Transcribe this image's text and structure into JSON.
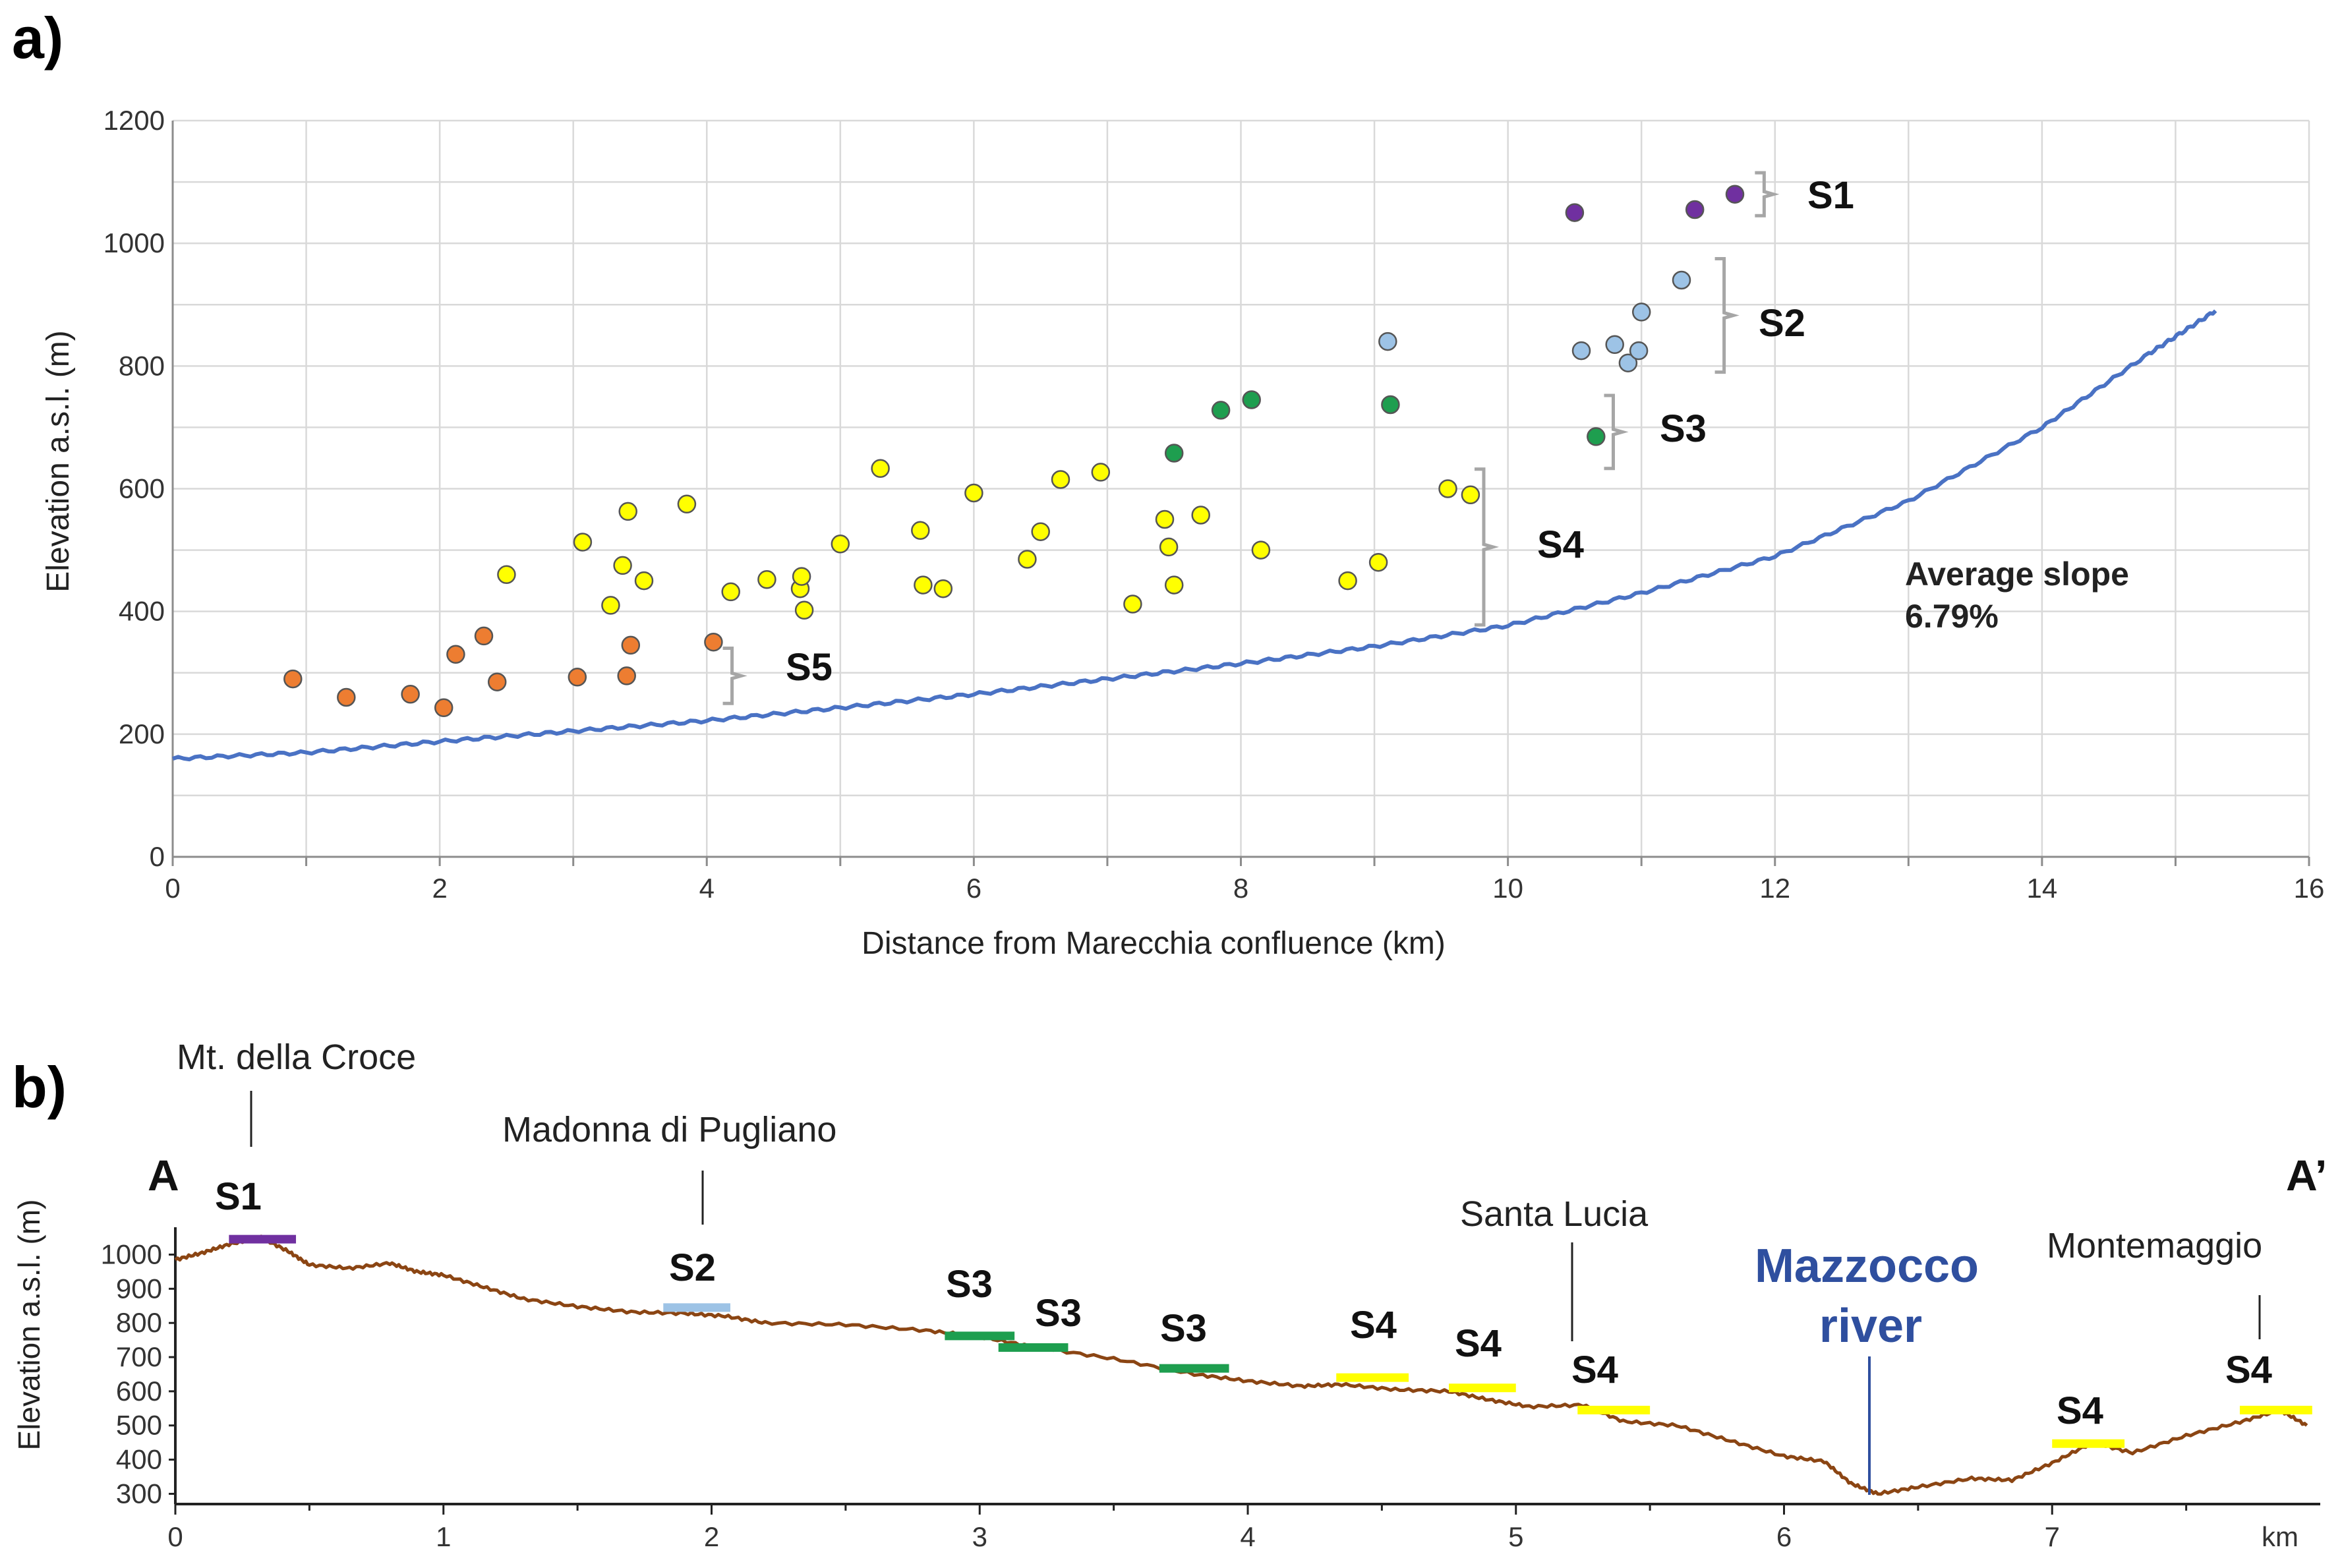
{
  "figure": {
    "panel_a_label": "a)",
    "panel_b_label": "b)"
  },
  "chart_data": [
    {
      "type": "scatter",
      "panel": "a)",
      "xlabel": "Distance from Marecchia confluence (km)",
      "ylabel": "Elevation a.s.l. (m)",
      "xlim": [
        0,
        16
      ],
      "ylim": [
        0,
        1200
      ],
      "xticks": [
        0,
        2,
        4,
        6,
        8,
        10,
        12,
        14,
        16
      ],
      "yticks": [
        0,
        200,
        400,
        600,
        800,
        1000,
        1200
      ],
      "grid": true,
      "colors": {
        "S1": "#7030a0",
        "S2": "#9dc3e6",
        "S3": "#1e9e4f",
        "S4": "#ffff00",
        "S5": "#ed7d31",
        "profile": "#4a72c4"
      },
      "series": [
        {
          "name": "S1",
          "points": [
            [
              10.5,
              1050
            ],
            [
              11.4,
              1055
            ],
            [
              11.7,
              1080
            ]
          ]
        },
        {
          "name": "S2",
          "points": [
            [
              9.1,
              840
            ],
            [
              10.55,
              825
            ],
            [
              10.8,
              835
            ],
            [
              10.9,
              805
            ],
            [
              10.98,
              825
            ],
            [
              11.0,
              888
            ],
            [
              11.3,
              940
            ]
          ]
        },
        {
          "name": "S3",
          "points": [
            [
              7.5,
              658
            ],
            [
              7.85,
              728
            ],
            [
              8.08,
              745
            ],
            [
              9.12,
              737
            ],
            [
              10.66,
              685
            ]
          ]
        },
        {
          "name": "S4",
          "points": [
            [
              2.5,
              460
            ],
            [
              3.07,
              513
            ],
            [
              3.28,
              410
            ],
            [
              3.37,
              475
            ],
            [
              3.41,
              563
            ],
            [
              3.53,
              450
            ],
            [
              3.85,
              575
            ],
            [
              4.18,
              432
            ],
            [
              4.45,
              452
            ],
            [
              4.7,
              437
            ],
            [
              4.71,
              457
            ],
            [
              4.73,
              402
            ],
            [
              5.0,
              510
            ],
            [
              5.3,
              633
            ],
            [
              5.6,
              532
            ],
            [
              5.62,
              443
            ],
            [
              5.77,
              437
            ],
            [
              6.0,
              593
            ],
            [
              6.4,
              485
            ],
            [
              6.5,
              530
            ],
            [
              6.65,
              615
            ],
            [
              6.95,
              627
            ],
            [
              7.19,
              412
            ],
            [
              7.43,
              550
            ],
            [
              7.46,
              505
            ],
            [
              7.5,
              443
            ],
            [
              7.7,
              557
            ],
            [
              8.15,
              500
            ],
            [
              8.8,
              450
            ],
            [
              9.03,
              480
            ],
            [
              9.55,
              600
            ],
            [
              9.72,
              590
            ]
          ]
        },
        {
          "name": "S5",
          "points": [
            [
              0.9,
              290
            ],
            [
              1.3,
              260
            ],
            [
              1.78,
              265
            ],
            [
              2.03,
              243
            ],
            [
              2.12,
              330
            ],
            [
              2.33,
              360
            ],
            [
              2.43,
              285
            ],
            [
              3.03,
              293
            ],
            [
              3.4,
              295
            ],
            [
              3.43,
              345
            ],
            [
              4.05,
              350
            ]
          ]
        }
      ],
      "profile": {
        "name": "river longitudinal profile",
        "points": [
          [
            0,
            160
          ],
          [
            1,
            170
          ],
          [
            2,
            188
          ],
          [
            3,
            205
          ],
          [
            4,
            222
          ],
          [
            5,
            243
          ],
          [
            6,
            265
          ],
          [
            7,
            290
          ],
          [
            8,
            315
          ],
          [
            9,
            343
          ],
          [
            10,
            377
          ],
          [
            11,
            430
          ],
          [
            12,
            490
          ],
          [
            13,
            580
          ],
          [
            14,
            700
          ],
          [
            14.8,
            820
          ],
          [
            15.3,
            890
          ]
        ]
      },
      "stage_brackets": [
        {
          "label": "S1",
          "from": 1045,
          "to": 1115,
          "x": 11.85
        },
        {
          "label": "S2",
          "from": 790,
          "to": 975,
          "x": 11.55
        },
        {
          "label": "S3",
          "from": 633,
          "to": 752,
          "x": 10.72
        },
        {
          "label": "S4",
          "from": 378,
          "to": 632,
          "x": 9.75
        },
        {
          "label": "S5",
          "from": 250,
          "to": 340,
          "x": 4.12
        }
      ],
      "annotation": {
        "line1": "Average slope",
        "line2": "6.79%"
      }
    },
    {
      "type": "line",
      "panel": "b)",
      "ylabel": "Elevation a.s.l. (m)",
      "xlim": [
        0,
        8
      ],
      "ylim": [
        270,
        1080
      ],
      "xtick_labels": [
        "0",
        "1",
        "2",
        "3",
        "4",
        "5",
        "6",
        "7",
        "km"
      ],
      "xtick_values": [
        0,
        1,
        2,
        3,
        4,
        5,
        6,
        7,
        7.85
      ],
      "yticks": [
        300,
        400,
        500,
        600,
        700,
        800,
        900,
        1000
      ],
      "grid": false,
      "section_start": "A",
      "section_end": "A’",
      "profile_color": "#8b4513",
      "profile": [
        [
          0,
          985
        ],
        [
          0.1,
          1005
        ],
        [
          0.2,
          1030
        ],
        [
          0.32,
          1050
        ],
        [
          0.42,
          1010
        ],
        [
          0.5,
          970
        ],
        [
          0.65,
          960
        ],
        [
          0.8,
          975
        ],
        [
          0.9,
          950
        ],
        [
          1.0,
          940
        ],
        [
          1.15,
          905
        ],
        [
          1.3,
          870
        ],
        [
          1.5,
          848
        ],
        [
          1.7,
          832
        ],
        [
          1.9,
          828
        ],
        [
          2.05,
          820
        ],
        [
          2.2,
          800
        ],
        [
          2.5,
          795
        ],
        [
          2.8,
          778
        ],
        [
          3.0,
          760
        ],
        [
          3.2,
          730
        ],
        [
          3.5,
          695
        ],
        [
          3.8,
          650
        ],
        [
          4.0,
          630
        ],
        [
          4.2,
          615
        ],
        [
          4.35,
          620
        ],
        [
          4.55,
          605
        ],
        [
          4.75,
          600
        ],
        [
          4.9,
          575
        ],
        [
          5.05,
          555
        ],
        [
          5.25,
          560
        ],
        [
          5.4,
          512
        ],
        [
          5.6,
          500
        ],
        [
          5.8,
          455
        ],
        [
          6.0,
          410
        ],
        [
          6.15,
          395
        ],
        [
          6.25,
          330
        ],
        [
          6.35,
          300
        ],
        [
          6.5,
          320
        ],
        [
          6.7,
          345
        ],
        [
          6.85,
          340
        ],
        [
          7.0,
          390
        ],
        [
          7.15,
          450
        ],
        [
          7.3,
          420
        ],
        [
          7.5,
          470
        ],
        [
          7.7,
          510
        ],
        [
          7.85,
          545
        ],
        [
          7.95,
          500
        ]
      ],
      "terraces": [
        {
          "label": "S1",
          "color": "#7030a0",
          "x0": 0.2,
          "x1": 0.45,
          "elev": 1045
        },
        {
          "label": "S2",
          "color": "#9dc3e6",
          "x0": 1.82,
          "x1": 2.07,
          "elev": 845
        },
        {
          "label": "S3",
          "color": "#1e9e4f",
          "x0": 2.87,
          "x1": 3.13,
          "elev": 762
        },
        {
          "label": "S3",
          "color": "#1e9e4f",
          "x0": 3.07,
          "x1": 3.33,
          "elev": 728
        },
        {
          "label": "S3",
          "color": "#1e9e4f",
          "x0": 3.67,
          "x1": 3.93,
          "elev": 667
        },
        {
          "label": "S4",
          "color": "#ffff00",
          "x0": 4.33,
          "x1": 4.6,
          "elev": 640
        },
        {
          "label": "S4",
          "color": "#ffff00",
          "x0": 4.75,
          "x1": 5.0,
          "elev": 610
        },
        {
          "label": "S4",
          "color": "#ffff00",
          "x0": 5.23,
          "x1": 5.5,
          "elev": 545
        },
        {
          "label": "S4",
          "color": "#ffff00",
          "x0": 7.0,
          "x1": 7.27,
          "elev": 447
        },
        {
          "label": "S4",
          "color": "#ffff00",
          "x0": 7.7,
          "x1": 7.97,
          "elev": 545
        }
      ],
      "places": [
        {
          "name": "Mt. della Croce",
          "x": 0.28,
          "kind": "site"
        },
        {
          "name": "Madonna di Pugliano",
          "x": 1.96,
          "kind": "site"
        },
        {
          "name": "Santa Lucia",
          "x": 5.22,
          "kind": "site"
        },
        {
          "name": "Montemaggio",
          "x": 7.8,
          "kind": "site"
        }
      ],
      "river": {
        "line1": "Mazzocco",
        "line2": "river",
        "x": 6.32,
        "color": "#2f4f9f"
      }
    }
  ]
}
